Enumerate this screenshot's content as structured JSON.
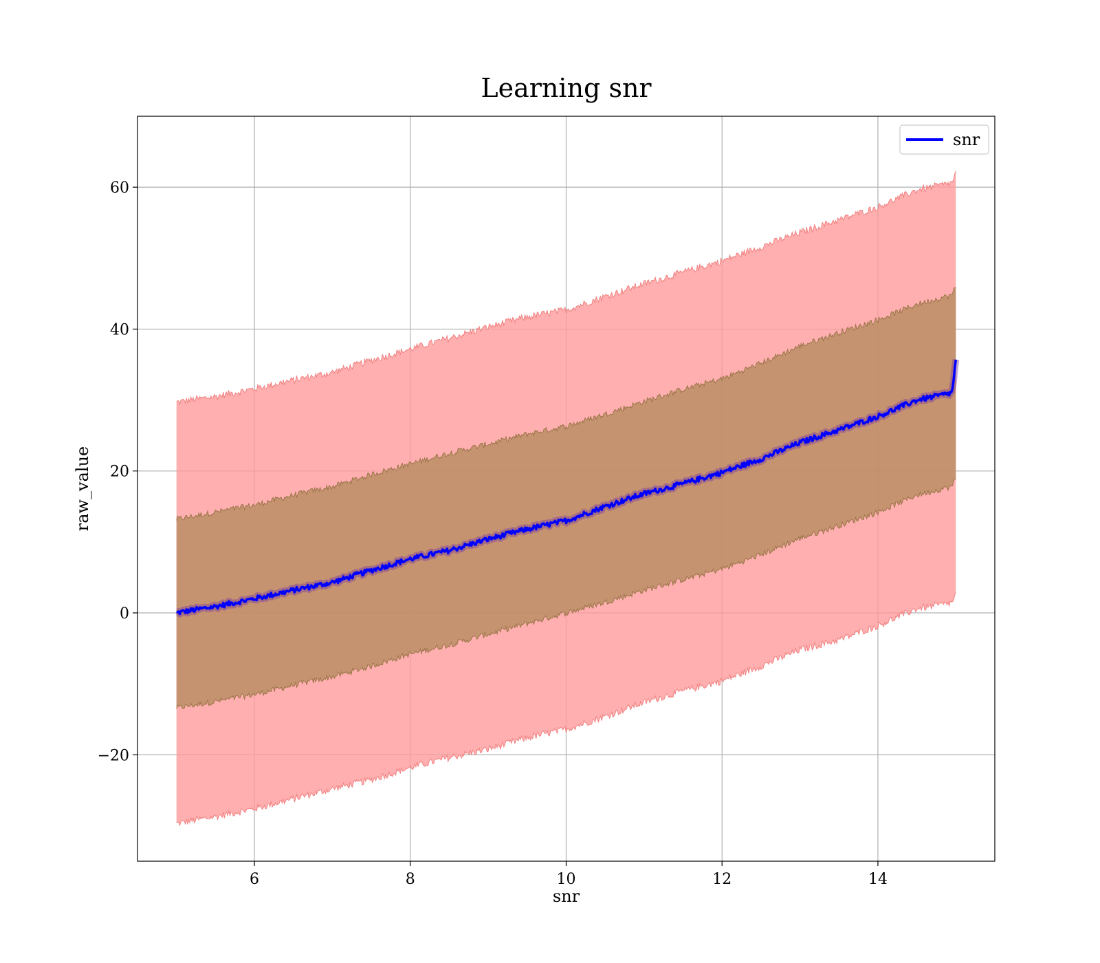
{
  "chart_data": {
    "type": "line",
    "title": "Learning snr",
    "xlabel": "snr",
    "ylabel": "raw_value",
    "xlim": [
      4.5,
      15.5
    ],
    "ylim": [
      -35,
      70
    ],
    "xticks": [
      6,
      8,
      10,
      12,
      14
    ],
    "xtick_labels": [
      "6",
      "8",
      "10",
      "12",
      "14"
    ],
    "yticks": [
      -20,
      0,
      20,
      40,
      60
    ],
    "ytick_labels": [
      "−20",
      "0",
      "20",
      "40",
      "60"
    ],
    "grid": true,
    "legend": {
      "position": "top-right",
      "entries": [
        "snr"
      ]
    },
    "colors": {
      "line": "#0000ff",
      "outer_band": "#ff9999",
      "outer_band_edge": "#f08080",
      "inner_band": "#b38a5c",
      "inner_band_edge": "#9a7448",
      "line_band": "#7b3f9e"
    },
    "series": [
      {
        "name": "snr",
        "x": [
          5.0,
          5.5,
          6.0,
          6.5,
          7.0,
          7.5,
          8.0,
          8.5,
          9.0,
          9.5,
          10.0,
          10.5,
          11.0,
          11.5,
          12.0,
          12.5,
          13.0,
          13.5,
          14.0,
          14.5,
          14.95,
          15.0
        ],
        "y": [
          0.0,
          0.9,
          2.0,
          3.2,
          4.3,
          6.0,
          7.6,
          8.8,
          10.4,
          11.8,
          13.0,
          15.0,
          16.8,
          18.2,
          19.8,
          21.7,
          24.0,
          25.8,
          27.7,
          30.0,
          31.0,
          35.5
        ],
        "inner_band": {
          "lower": [
            -13.4,
            -12.5,
            -11.5,
            -10.2,
            -9.0,
            -7.5,
            -5.8,
            -4.5,
            -3.0,
            -1.5,
            0.0,
            1.5,
            3.2,
            4.7,
            6.2,
            8.2,
            10.5,
            12.3,
            14.2,
            16.6,
            17.8,
            19.0
          ],
          "upper": [
            13.2,
            14.2,
            15.2,
            16.6,
            17.8,
            19.5,
            21.0,
            22.5,
            23.8,
            25.2,
            26.3,
            28.0,
            29.8,
            31.5,
            33.0,
            35.2,
            37.6,
            39.5,
            41.3,
            43.5,
            44.8,
            46.0
          ]
        },
        "outer_band": {
          "lower": [
            -29.7,
            -28.7,
            -27.6,
            -26.2,
            -24.8,
            -23.5,
            -21.8,
            -20.4,
            -19.2,
            -17.6,
            -16.4,
            -14.6,
            -12.6,
            -11.0,
            -9.6,
            -7.5,
            -5.2,
            -3.8,
            -1.8,
            0.6,
            1.4,
            2.6
          ],
          "upper": [
            29.7,
            30.5,
            31.6,
            32.8,
            33.9,
            35.6,
            37.2,
            38.7,
            40.3,
            41.7,
            42.7,
            44.6,
            46.4,
            48.0,
            49.6,
            51.6,
            53.6,
            55.4,
            57.2,
            59.6,
            60.6,
            62.0
          ]
        }
      }
    ]
  }
}
